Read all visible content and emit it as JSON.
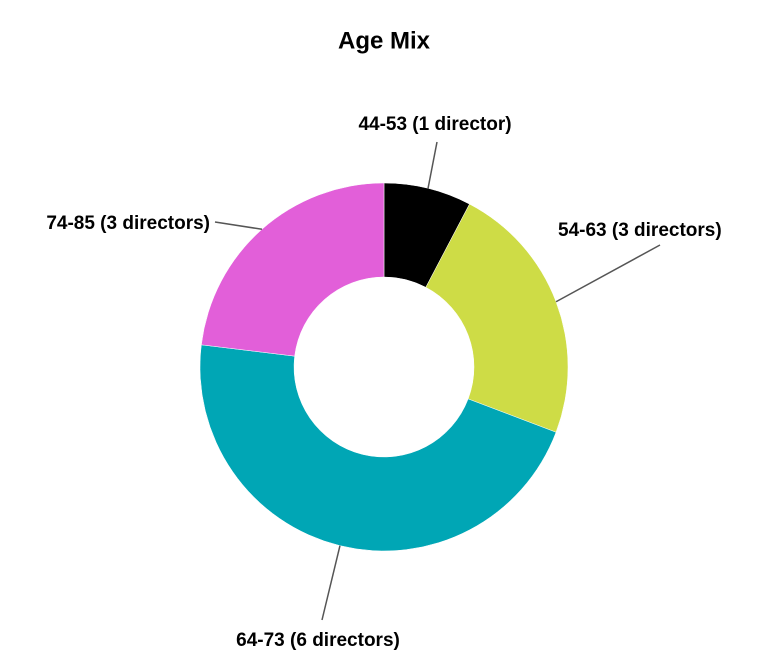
{
  "chart_data": {
    "type": "donut",
    "title": "Age Mix",
    "categories": [
      "44-53 (1 director)",
      "54-63 (3 directors)",
      "64-73 (6 directors)",
      "74-85 (3 directors)"
    ],
    "values": [
      1,
      3,
      6,
      3
    ],
    "colors": [
      "#000000",
      "#cedc46",
      "#00a6b5",
      "#e25fd9"
    ]
  }
}
